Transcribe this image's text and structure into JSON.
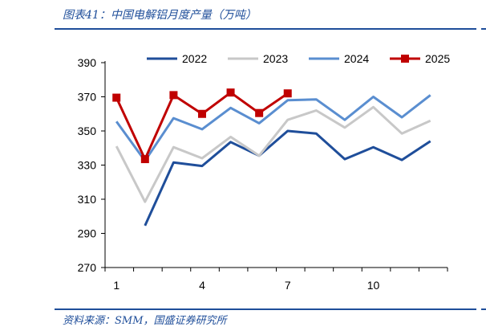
{
  "figure": {
    "title": "图表41：中国电解铝月度产量（万吨）",
    "source": "资料来源：SMM，国盛证券研究所"
  },
  "chart_data": {
    "type": "line",
    "x": [
      1,
      2,
      3,
      4,
      5,
      6,
      7,
      8,
      9,
      10,
      11,
      12
    ],
    "xticks": [
      "1",
      "4",
      "7",
      "10"
    ],
    "xtick_values": [
      1,
      4,
      7,
      10
    ],
    "ylim": [
      270,
      390
    ],
    "yticks": [
      "270",
      "290",
      "310",
      "330",
      "350",
      "370",
      "390"
    ],
    "ytick_values": [
      270,
      290,
      310,
      330,
      350,
      370,
      390
    ],
    "legend_position": "top",
    "series": [
      {
        "name": "2022",
        "color": "#1f4e9a",
        "marker": "none",
        "values": [
          null,
          294.5,
          331.5,
          329.5,
          343.5,
          335.5,
          350,
          348.5,
          333.5,
          340.5,
          333,
          344
        ]
      },
      {
        "name": "2023",
        "color": "#c8c8c8",
        "marker": "none",
        "values": [
          341,
          308.5,
          340.5,
          334,
          346.5,
          335.5,
          356.5,
          362,
          352,
          364,
          348.5,
          356
        ]
      },
      {
        "name": "2024",
        "color": "#5a8ed0",
        "marker": "none",
        "values": [
          355.5,
          332.5,
          357.5,
          351,
          363.5,
          354.5,
          368,
          368.5,
          356.5,
          370,
          358,
          371
        ]
      },
      {
        "name": "2025",
        "color": "#c00000",
        "marker": "square",
        "values": [
          369.5,
          333.5,
          371,
          360,
          372.5,
          360.5,
          372,
          null,
          null,
          null,
          null,
          null
        ]
      }
    ]
  }
}
